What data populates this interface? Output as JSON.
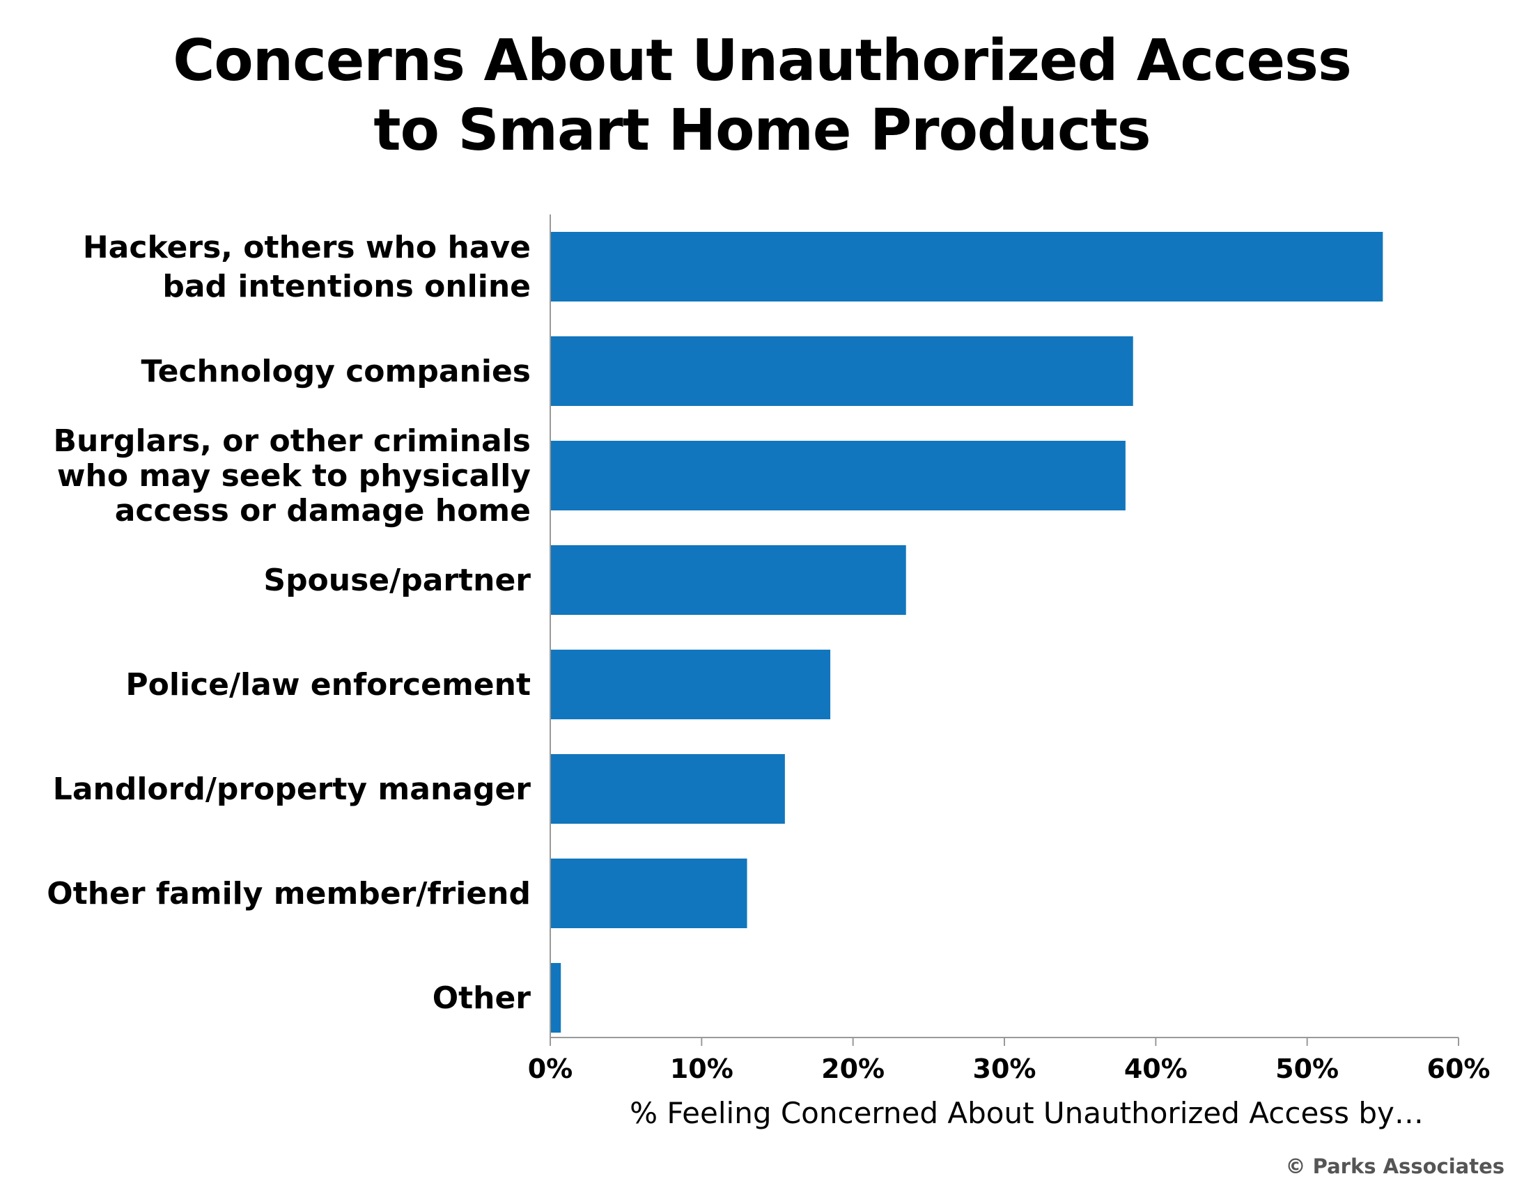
{
  "chart_data": {
    "type": "bar",
    "orientation": "horizontal",
    "title_lines": [
      "Concerns About Unauthorized Access",
      "to Smart Home Products"
    ],
    "categories": [
      [
        "Hackers, others who have",
        "bad intentions online"
      ],
      [
        "Technology companies"
      ],
      [
        "Burglars, or other criminals",
        "who may seek to physically",
        "access or damage home"
      ],
      [
        "Spouse/partner"
      ],
      [
        "Police/law enforcement"
      ],
      [
        "Landlord/property manager"
      ],
      [
        "Other family member/friend"
      ],
      [
        "Other"
      ]
    ],
    "values": [
      55,
      38.5,
      38,
      23.5,
      18.5,
      15.5,
      13,
      0.7
    ],
    "xlim": [
      0,
      60
    ],
    "xticks": [
      0,
      10,
      20,
      30,
      40,
      50,
      60
    ],
    "xtick_labels": [
      "0%",
      "10%",
      "20%",
      "30%",
      "40%",
      "50%",
      "60%"
    ],
    "xlabel": "% Feeling Concerned About Unauthorized Access by…",
    "ylabel": "",
    "grid": false,
    "legend": "none",
    "bar_color": "#1176bd",
    "axis_color": "#999999"
  },
  "footer": {
    "copyright": "© Parks Associates"
  }
}
